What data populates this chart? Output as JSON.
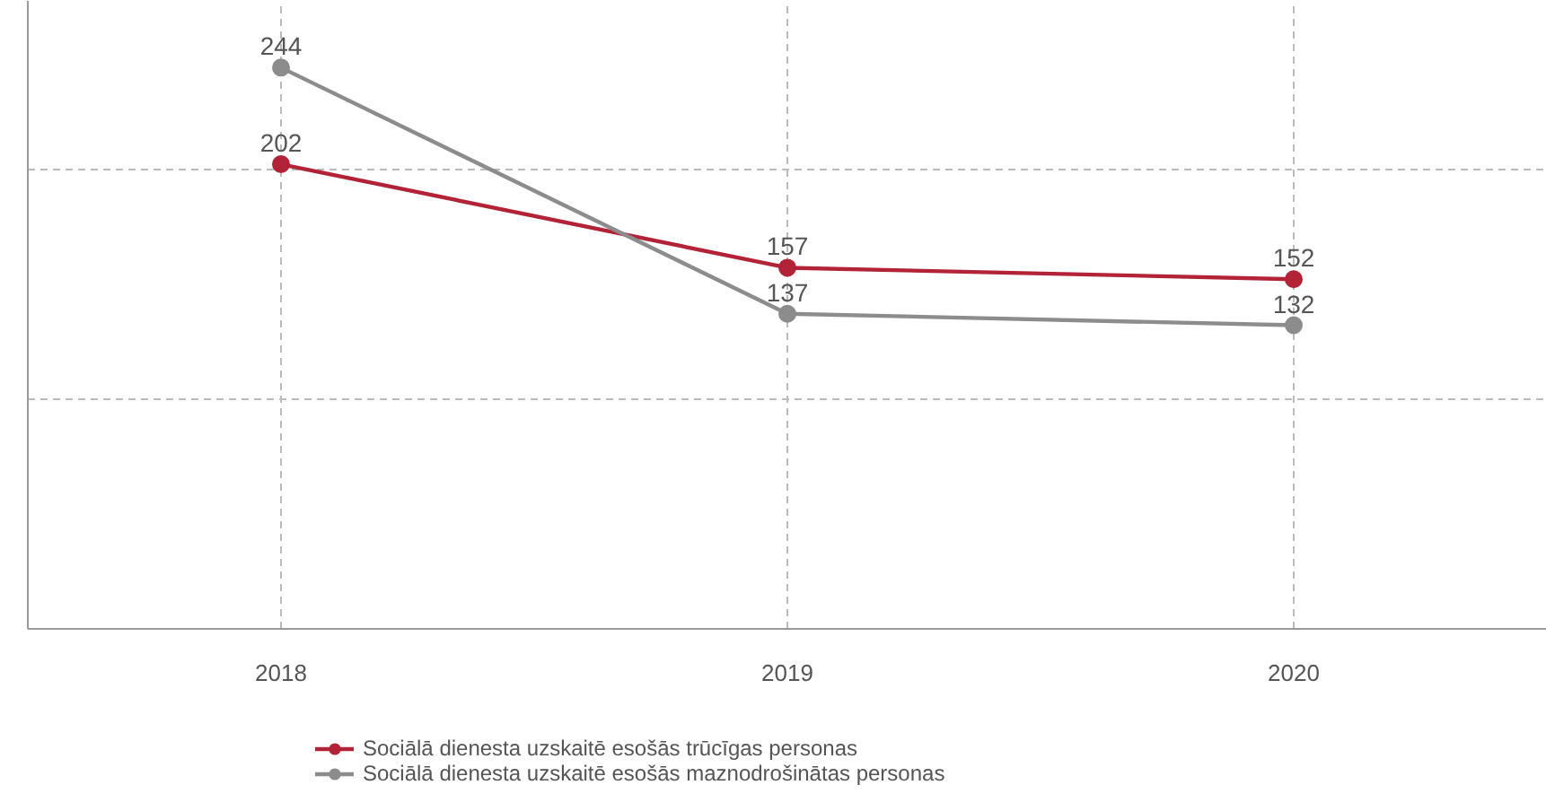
{
  "chart_data": {
    "type": "line",
    "categories": [
      "2018",
      "2019",
      "2020"
    ],
    "series": [
      {
        "name": "Sociālā dienesta uzskaitē esošās trūcīgas personas",
        "color": "#b22337",
        "values": [
          202,
          157,
          152
        ]
      },
      {
        "name": "Sociālā dienesta uzskaitē esošās maznodrošinātas personas",
        "color": "#8c8c8c",
        "values": [
          244,
          137,
          132
        ]
      }
    ],
    "ylim": [
      0,
      273
    ],
    "yticks": [
      {
        "value": 100,
        "label": null
      },
      {
        "value": 200,
        "label": null
      }
    ],
    "tick_labels": "x",
    "grid": true,
    "legend": "bottom",
    "marker": "circle",
    "line_style": "solid",
    "data_labels": true
  }
}
